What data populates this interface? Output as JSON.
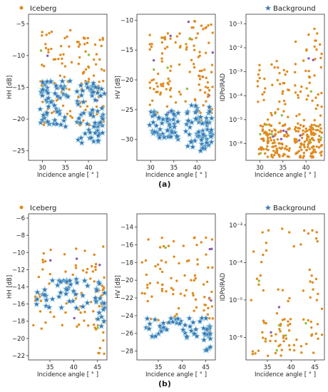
{
  "figure": {
    "legend_iceberg": "Iceberg",
    "legend_background": "Background",
    "caption_a": "(a)",
    "caption_b": "(b)",
    "colors": {
      "iceberg": "#e08a1e",
      "background": "#3b78b5",
      "shadow": "#9fd4e4",
      "green": "#8fbf3a",
      "purple": "#8a5ab0"
    }
  },
  "chart_data": [
    {
      "id": "a-hh",
      "type": "scatter",
      "panel": "a",
      "xlabel": "Incidence angle [ ° ]",
      "ylabel": "HH [dB]",
      "scale": "linear",
      "xlim": [
        27,
        44
      ],
      "ylim": [
        -26.5,
        -3.5
      ],
      "xticks": [
        30,
        35,
        40
      ],
      "yticks": [
        -5,
        -10,
        -15,
        -20,
        -25
      ],
      "series": [
        {
          "name": "Iceberg",
          "marker": "dot",
          "bands": [
            [
              29.5,
              36.5,
              -21,
              -6,
              62
            ],
            [
              37.5,
              43.5,
              -21,
              -7,
              70
            ]
          ]
        },
        {
          "name": "Background",
          "marker": "star",
          "bands": [
            [
              29.5,
              36.0,
              -22,
              -14,
              55
            ],
            [
              37.5,
              43.5,
              -24,
              -14,
              62
            ]
          ]
        }
      ]
    },
    {
      "id": "a-hv",
      "type": "scatter",
      "panel": "a",
      "xlabel": "Incidence angle [ ° ]",
      "ylabel": "HV [dB]",
      "scale": "linear",
      "xlim": [
        27,
        44
      ],
      "ylim": [
        -33.5,
        -9
      ],
      "xticks": [
        30,
        35,
        40
      ],
      "yticks": [
        -10,
        -15,
        -20,
        -25,
        -30
      ],
      "series": [
        {
          "name": "Iceberg",
          "marker": "dot",
          "bands": [
            [
              29.5,
              36.5,
              -26,
              -12,
              62
            ],
            [
              37.5,
              43.5,
              -27,
              -10,
              70
            ]
          ]
        },
        {
          "name": "Background",
          "marker": "star",
          "bands": [
            [
              29.5,
              36.0,
              -30,
              -25,
              50
            ],
            [
              37.5,
              43.5,
              -32,
              -24,
              62
            ]
          ]
        }
      ]
    },
    {
      "id": "a-idp",
      "type": "scatter",
      "panel": "a",
      "xlabel": "Incidence angle [ ° ]",
      "ylabel": "IDPolRAD",
      "scale": "log",
      "xlim": [
        27,
        44
      ],
      "ylim": [
        -6.7,
        -0.6
      ],
      "xticks": [
        30,
        35,
        40
      ],
      "yticks": [
        -1,
        -2,
        -3,
        -4,
        -5,
        -6
      ],
      "ytick_labels": [
        "10⁻¹",
        "10⁻²",
        "10⁻³",
        "10⁻⁴",
        "10⁻⁵",
        "10⁻⁶"
      ],
      "series": [
        {
          "name": "Iceberg",
          "marker": "dot",
          "bands": [
            [
              29.5,
              36.5,
              -6.6,
              -5.2,
              110
            ],
            [
              37.5,
              43.5,
              -6.6,
              -5.2,
              120
            ],
            [
              29.5,
              36.5,
              -5.3,
              -2.5,
              45
            ],
            [
              37.5,
              43.5,
              -5.3,
              -1.2,
              50
            ]
          ]
        }
      ]
    },
    {
      "id": "b-hh",
      "type": "scatter",
      "panel": "b",
      "xlabel": "Incidence angle [ ° ]",
      "ylabel": "HH [dB]",
      "scale": "linear",
      "xlim": [
        30.5,
        47
      ],
      "ylim": [
        -22.5,
        -5.5
      ],
      "xticks": [
        35,
        40,
        45
      ],
      "yticks": [
        -6,
        -8,
        -10,
        -12,
        -14,
        -16,
        -18,
        -20,
        -22
      ],
      "series": [
        {
          "name": "Iceberg",
          "marker": "dot",
          "bands": [
            [
              31.5,
              46.5,
              -19,
              -9,
              75
            ],
            [
              44.5,
              46.5,
              -22,
              -12,
              15
            ]
          ]
        },
        {
          "name": "Background",
          "marker": "star",
          "bands": [
            [
              32,
              46.5,
              -16.5,
              -13,
              45
            ],
            [
              44.5,
              46.5,
              -19,
              -14,
              12
            ]
          ]
        }
      ]
    },
    {
      "id": "b-hv",
      "type": "scatter",
      "panel": "b",
      "xlabel": "Incidence angle [ ° ]",
      "ylabel": "HV [dB]",
      "scale": "linear",
      "xlim": [
        30.5,
        47
      ],
      "ylim": [
        -29,
        -12.5
      ],
      "xticks": [
        35,
        40,
        45
      ],
      "yticks": [
        -14,
        -16,
        -18,
        -20,
        -22,
        -24,
        -26,
        -28
      ],
      "series": [
        {
          "name": "Iceberg",
          "marker": "dot",
          "bands": [
            [
              31.5,
              46.5,
              -25,
              -15,
              75
            ],
            [
              44.5,
              46.5,
              -26,
              -20,
              14
            ]
          ]
        },
        {
          "name": "Background",
          "marker": "star",
          "bands": [
            [
              32,
              46.5,
              -26.5,
              -24,
              45
            ],
            [
              44.5,
              46.5,
              -28,
              -25,
              12
            ]
          ]
        }
      ]
    },
    {
      "id": "b-idp",
      "type": "scatter",
      "panel": "b",
      "xlabel": "Incidence angle [ ° ]",
      "ylabel": "IDPolRAD",
      "scale": "log",
      "xlim": [
        30.5,
        47
      ],
      "ylim": [
        -6.6,
        -2.7
      ],
      "xticks": [
        35,
        40,
        45
      ],
      "yticks": [
        -3,
        -4,
        -5,
        -6
      ],
      "ytick_labels": [
        "10⁻³",
        "10⁻⁴",
        "10⁻⁵",
        "10⁻⁶"
      ],
      "series": [
        {
          "name": "Iceberg",
          "marker": "dot",
          "bands": [
            [
              31.5,
              46.5,
              -6.5,
              -5.5,
              60
            ],
            [
              31.5,
              46.5,
              -5.5,
              -3.0,
              40
            ]
          ]
        }
      ]
    }
  ]
}
